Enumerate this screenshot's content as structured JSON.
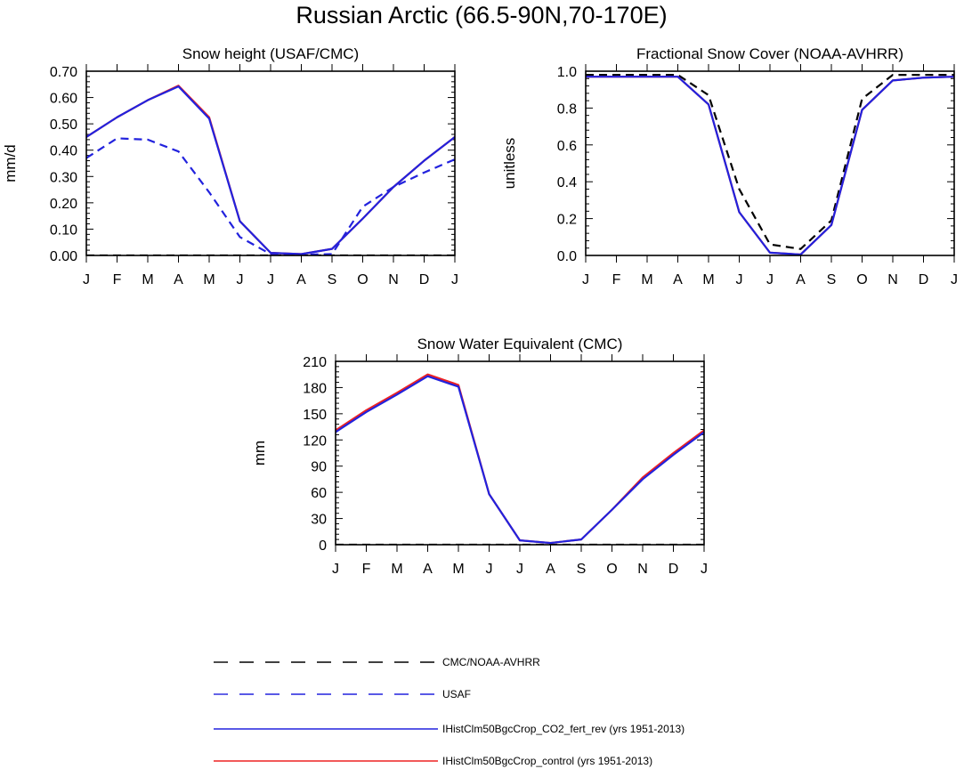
{
  "figure": {
    "title": "Russian Arctic (66.5-90N,70-170E)"
  },
  "style": {
    "colors": {
      "CMC/NOAA-AVHRR": "#000000",
      "USAF": "#2222dd",
      "IHistClm50BgcCrop_CO2_fert_rev (yrs 1951-2013)": "#2222dd",
      "IHistClm50BgcCrop_control (yrs 1951-2013)": "#ee2222"
    },
    "dash": {
      "CMC/NOAA-AVHRR": "dashed",
      "USAF": "dashed",
      "IHistClm50BgcCrop_CO2_fert_rev (yrs 1951-2013)": "solid",
      "IHistClm50BgcCrop_control (yrs 1951-2013)": "solid"
    }
  },
  "legend": {
    "entries": [
      "CMC/NOAA-AVHRR",
      "USAF",
      "IHistClm50BgcCrop_CO2_fert_rev (yrs 1951-2013)",
      "IHistClm50BgcCrop_control (yrs 1951-2013)"
    ]
  },
  "chart_data": [
    {
      "type": "line",
      "title": "Snow height (USAF/CMC)",
      "xlabel": "",
      "ylabel": "mm/d",
      "categories": [
        "J",
        "F",
        "M",
        "A",
        "M",
        "J",
        "J",
        "A",
        "S",
        "O",
        "N",
        "D",
        "J"
      ],
      "ylim": [
        0,
        0.7
      ],
      "yticks": [
        "0.00",
        "0.10",
        "0.20",
        "0.30",
        "0.40",
        "0.50",
        "0.60",
        "0.70"
      ],
      "series": [
        {
          "name": "CMC/NOAA-AVHRR",
          "values": [
            0,
            0,
            0,
            0,
            0,
            0,
            0,
            0,
            0,
            0,
            0,
            0,
            0
          ]
        },
        {
          "name": "USAF",
          "values": [
            0.37,
            0.445,
            0.44,
            0.395,
            0.24,
            0.07,
            0.005,
            0.003,
            0.005,
            0.185,
            0.26,
            0.315,
            0.365
          ]
        },
        {
          "name": "IHistClm50BgcCrop_control (yrs 1951-2013)",
          "values": [
            0.45,
            0.525,
            0.59,
            0.645,
            0.525,
            0.13,
            0.01,
            0.005,
            0.025,
            0.14,
            0.26,
            0.36,
            0.45
          ]
        },
        {
          "name": "IHistClm50BgcCrop_CO2_fert_rev (yrs 1951-2013)",
          "values": [
            0.45,
            0.525,
            0.59,
            0.642,
            0.52,
            0.13,
            0.01,
            0.005,
            0.025,
            0.14,
            0.26,
            0.36,
            0.45
          ]
        }
      ]
    },
    {
      "type": "line",
      "title": "Fractional Snow Cover (NOAA-AVHRR)",
      "xlabel": "",
      "ylabel": "unitless",
      "categories": [
        "J",
        "F",
        "M",
        "A",
        "M",
        "J",
        "J",
        "A",
        "S",
        "O",
        "N",
        "D",
        "J"
      ],
      "ylim": [
        0,
        1.0
      ],
      "yticks": [
        "0.0",
        "0.2",
        "0.4",
        "0.6",
        "0.8",
        "1.0"
      ],
      "series": [
        {
          "name": "CMC/NOAA-AVHRR",
          "values": [
            0.98,
            0.98,
            0.98,
            0.98,
            0.87,
            0.36,
            0.06,
            0.035,
            0.19,
            0.85,
            0.98,
            0.98,
            0.98
          ]
        },
        {
          "name": "IHistClm50BgcCrop_control (yrs 1951-2013)",
          "values": [
            0.97,
            0.97,
            0.97,
            0.97,
            0.82,
            0.235,
            0.015,
            0.005,
            0.165,
            0.79,
            0.95,
            0.965,
            0.97
          ]
        },
        {
          "name": "IHistClm50BgcCrop_CO2_fert_rev (yrs 1951-2013)",
          "values": [
            0.97,
            0.97,
            0.97,
            0.97,
            0.82,
            0.235,
            0.015,
            0.005,
            0.165,
            0.79,
            0.95,
            0.965,
            0.97
          ]
        }
      ]
    },
    {
      "type": "line",
      "title": "Snow Water Equivalent (CMC)",
      "xlabel": "",
      "ylabel": "mm",
      "categories": [
        "J",
        "F",
        "M",
        "A",
        "M",
        "J",
        "J",
        "A",
        "S",
        "O",
        "N",
        "D",
        "J"
      ],
      "ylim": [
        0,
        210
      ],
      "yticks": [
        "0",
        "30",
        "60",
        "90",
        "120",
        "150",
        "180",
        "210"
      ],
      "series": [
        {
          "name": "CMC/NOAA-AVHRR",
          "values": [
            0,
            0,
            0,
            0,
            0,
            0,
            0,
            0,
            0,
            0,
            0,
            0,
            0
          ]
        },
        {
          "name": "IHistClm50BgcCrop_control (yrs 1951-2013)",
          "values": [
            131,
            154,
            174,
            195,
            183,
            58,
            5,
            2,
            6,
            40,
            77,
            105,
            131
          ]
        },
        {
          "name": "IHistClm50BgcCrop_CO2_fert_rev (yrs 1951-2013)",
          "values": [
            129,
            152,
            172,
            193,
            181,
            58,
            5,
            2,
            6,
            40,
            75,
            103,
            129
          ]
        }
      ]
    }
  ]
}
